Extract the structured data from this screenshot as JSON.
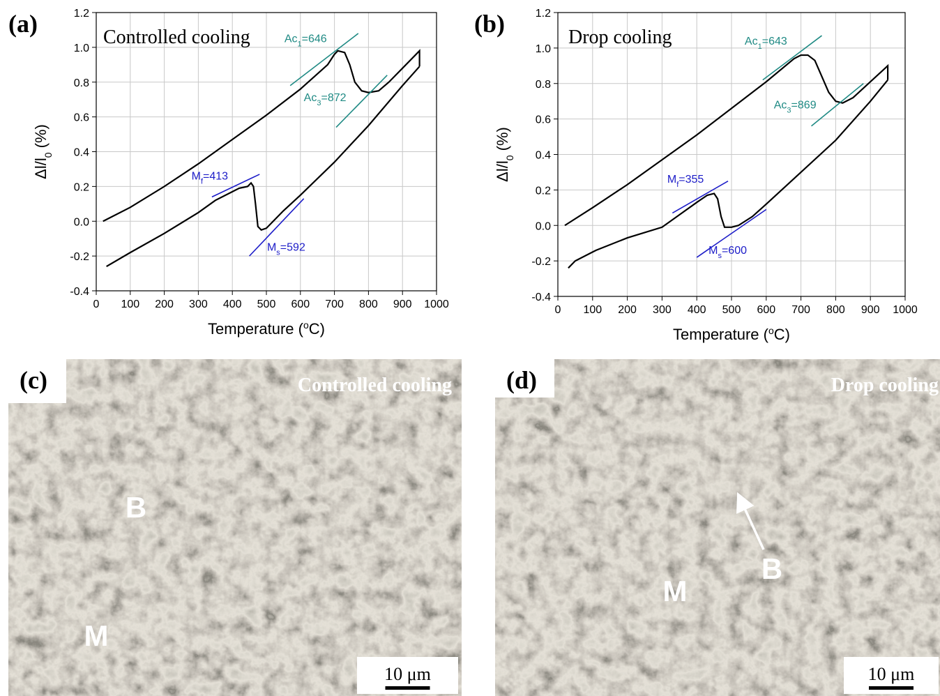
{
  "chart_data": [
    {
      "type": "line",
      "panel_label": "(a)",
      "title": "Controlled cooling",
      "xlabel": [
        "Temperature (",
        "o",
        "C)"
      ],
      "ylabel": [
        "Δl/l",
        "0",
        " (%)"
      ],
      "xlim": [
        0,
        1000
      ],
      "xticks": [
        0,
        100,
        200,
        300,
        400,
        500,
        600,
        700,
        800,
        900,
        1000
      ],
      "ylim": [
        -0.4,
        1.2
      ],
      "yticks": [
        -0.4,
        -0.2,
        {
          "value": 0,
          "label": "0.0"
        },
        0.2,
        0.4,
        0.6,
        0.8,
        {
          "value": 1,
          "label": "1.0"
        },
        1.2
      ],
      "grid": true,
      "series": [
        {
          "color": "#000000",
          "x": [
            20,
            100,
            200,
            300,
            400,
            500,
            600,
            680,
            700,
            710,
            730,
            745,
            760,
            780,
            800,
            830,
            860,
            900,
            950,
            950
          ],
          "values": [
            0.0,
            0.08,
            0.2,
            0.33,
            0.47,
            0.61,
            0.76,
            0.9,
            0.96,
            0.98,
            0.97,
            0.9,
            0.8,
            0.75,
            0.74,
            0.75,
            0.8,
            0.88,
            0.98,
            0.89
          ]
        },
        {
          "color": "#000000",
          "x": [
            950,
            900,
            800,
            700,
            600,
            550,
            520,
            500,
            485,
            475,
            468,
            462,
            455,
            445,
            420,
            400,
            350,
            300,
            200,
            100,
            30
          ],
          "values": [
            0.89,
            0.78,
            0.55,
            0.34,
            0.15,
            0.06,
            0.0,
            -0.04,
            -0.05,
            -0.03,
            0.1,
            0.2,
            0.22,
            0.2,
            0.19,
            0.17,
            0.12,
            0.05,
            -0.07,
            -0.18,
            -0.26
          ]
        },
        {
          "color": "#1f8a84",
          "x": [
            570,
            770
          ],
          "values": [
            0.78,
            1.08
          ]
        },
        {
          "color": "#1f8a84",
          "x": [
            705,
            855
          ],
          "values": [
            0.54,
            0.84
          ]
        },
        {
          "color": "#1c1cc8",
          "x": [
            340,
            480
          ],
          "values": [
            0.14,
            0.27
          ]
        },
        {
          "color": "#1c1cc8",
          "x": [
            450,
            610
          ],
          "values": [
            -0.2,
            0.13
          ]
        }
      ],
      "annotations": [
        {
          "color": "#1f8a84",
          "parts": [
            "Ac",
            "1",
            "=646"
          ]
        },
        {
          "color": "#1f8a84",
          "parts": [
            "Ac",
            "3",
            "=872"
          ]
        },
        {
          "color": "#1c1cc8",
          "parts": [
            "M",
            "f",
            "=413"
          ]
        },
        {
          "color": "#1c1cc8",
          "parts": [
            "M",
            "s",
            "=592"
          ]
        }
      ]
    },
    {
      "type": "line",
      "panel_label": "(b)",
      "title": "Drop cooling",
      "xlabel": [
        "Temperature (",
        "o",
        "C)"
      ],
      "ylabel": [
        "Δl/l",
        "0",
        " (%)"
      ],
      "xlim": [
        0,
        1000
      ],
      "xticks": [
        0,
        100,
        200,
        300,
        400,
        500,
        600,
        700,
        800,
        900,
        1000
      ],
      "ylim": [
        -0.4,
        1.2
      ],
      "yticks": [
        -0.4,
        -0.2,
        {
          "value": 0,
          "label": "0.0"
        },
        0.2,
        0.4,
        0.6,
        0.8,
        {
          "value": 1,
          "label": "1.0"
        },
        1.2
      ],
      "grid": true,
      "series": [
        {
          "color": "#000000",
          "x": [
            20,
            100,
            200,
            300,
            400,
            500,
            600,
            680,
            700,
            720,
            740,
            760,
            780,
            800,
            820,
            850,
            900,
            950,
            950
          ],
          "values": [
            0.0,
            0.1,
            0.23,
            0.37,
            0.51,
            0.66,
            0.81,
            0.94,
            0.96,
            0.96,
            0.93,
            0.84,
            0.75,
            0.7,
            0.69,
            0.72,
            0.81,
            0.9,
            0.82
          ]
        },
        {
          "color": "#000000",
          "x": [
            950,
            900,
            800,
            700,
            600,
            560,
            520,
            500,
            480,
            470,
            460,
            450,
            430,
            400,
            350,
            300,
            200,
            110,
            100,
            50,
            30
          ],
          "values": [
            0.82,
            0.7,
            0.48,
            0.3,
            0.12,
            0.05,
            0.0,
            -0.01,
            -0.01,
            0.05,
            0.15,
            0.18,
            0.17,
            0.13,
            0.06,
            -0.01,
            -0.07,
            -0.14,
            -0.15,
            -0.2,
            -0.24
          ]
        },
        {
          "color": "#1f8a84",
          "x": [
            590,
            760
          ],
          "values": [
            0.82,
            1.07
          ]
        },
        {
          "color": "#1f8a84",
          "x": [
            730,
            880
          ],
          "values": [
            0.56,
            0.8
          ]
        },
        {
          "color": "#1c1cc8",
          "x": [
            330,
            490
          ],
          "values": [
            0.07,
            0.25
          ]
        },
        {
          "color": "#1c1cc8",
          "x": [
            400,
            600
          ],
          "values": [
            -0.18,
            0.09
          ]
        }
      ],
      "annotations": [
        {
          "color": "#1f8a84",
          "parts": [
            "Ac",
            "1",
            "=643"
          ]
        },
        {
          "color": "#1f8a84",
          "parts": [
            "Ac",
            "3",
            "=869"
          ]
        },
        {
          "color": "#1c1cc8",
          "parts": [
            "M",
            "f",
            "=355"
          ]
        },
        {
          "color": "#1c1cc8",
          "parts": [
            "M",
            "s",
            "=600"
          ]
        }
      ]
    }
  ],
  "micrographs": [
    {
      "panel_label": "(c)",
      "caption": "Controlled cooling",
      "markers": [
        "B",
        "M"
      ],
      "scale_bar": "10 μm"
    },
    {
      "panel_label": "(d)",
      "caption": "Drop cooling",
      "markers": [
        "B",
        "M"
      ],
      "scale_bar": "10 μm"
    }
  ]
}
